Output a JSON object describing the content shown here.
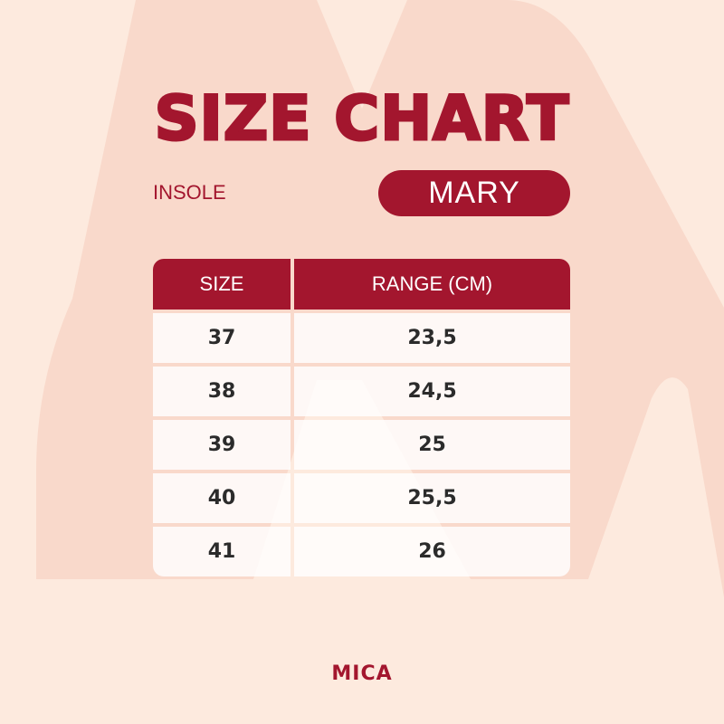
{
  "title": "SIZE CHART",
  "subtitle": "INSOLE",
  "model": "MARY",
  "table": {
    "headers": {
      "size": "SIZE",
      "range": "RANGE (CM)"
    },
    "rows": [
      {
        "size": "37",
        "range": "23,5"
      },
      {
        "size": "38",
        "range": "24,5"
      },
      {
        "size": "39",
        "range": "25"
      },
      {
        "size": "40",
        "range": "25,5"
      },
      {
        "size": "41",
        "range": "26"
      }
    ]
  },
  "brand": "MICA",
  "colors": {
    "background": "#fdeade",
    "accent": "#a3162e",
    "watermark": "#f9d9cb"
  }
}
